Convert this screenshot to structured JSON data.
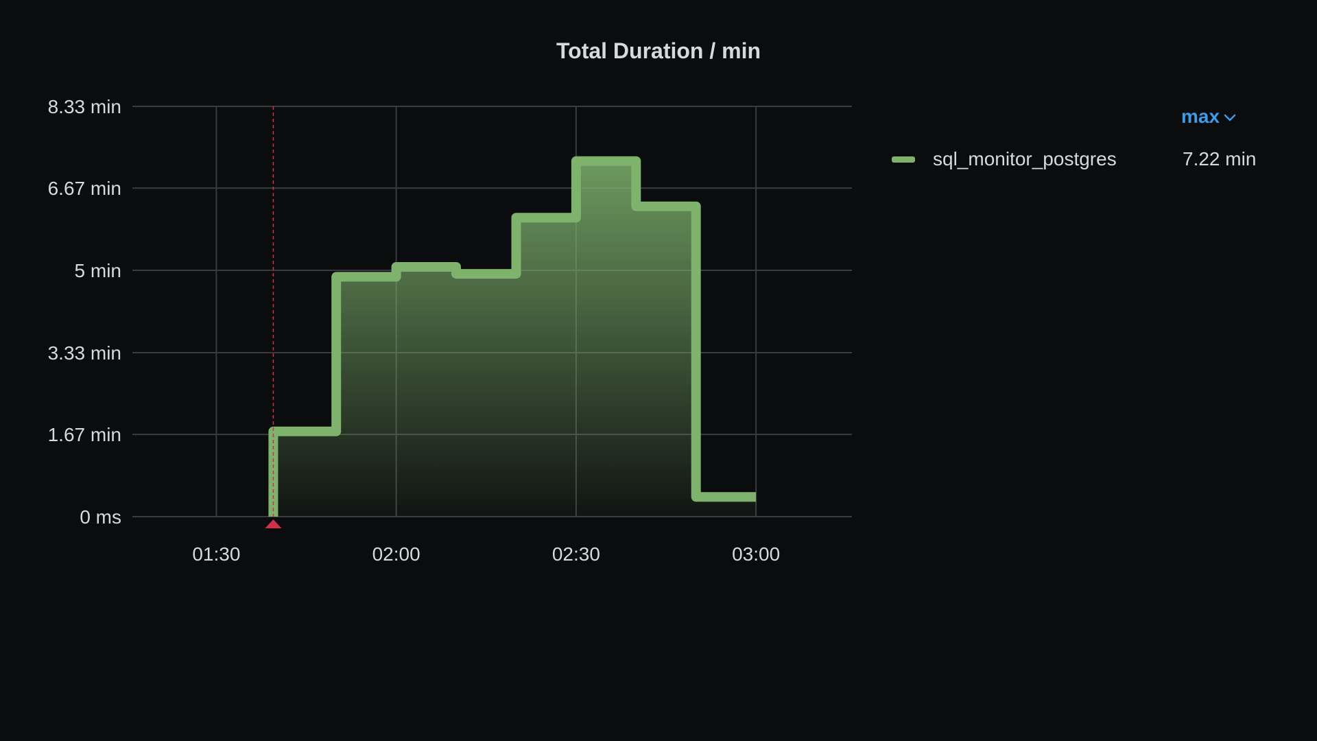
{
  "panel": {
    "title": "Total Duration / min"
  },
  "colors": {
    "background": "#0b0c0e",
    "text": "#d8d9da",
    "grid": "#3a3b3e",
    "series": "#7eb26d",
    "annotation": "#d0314a",
    "accent": "#3d9be9"
  },
  "legend": {
    "sort_label": "max",
    "sort_icon": "chevron-down-icon",
    "items": [
      {
        "name": "sql_monitor_postgres",
        "value": "7.22 min"
      }
    ]
  },
  "chart_data": {
    "type": "area",
    "title": "Total Duration / min",
    "xlabel": "",
    "ylabel": "",
    "x_tick_labels": [
      "01:30",
      "02:00",
      "02:30",
      "03:00"
    ],
    "x_tick_minutes": [
      90,
      120,
      150,
      180
    ],
    "xlim_minutes": [
      76,
      196
    ],
    "y_tick_labels": [
      "0 ms",
      "1.67 min",
      "3.33 min",
      "5 min",
      "6.67 min",
      "8.33 min"
    ],
    "y_tick_values": [
      0,
      1.67,
      3.33,
      5,
      6.67,
      8.33
    ],
    "ylim": [
      0,
      8.33
    ],
    "step": "after",
    "grid": true,
    "legend_placement": "right",
    "series": [
      {
        "name": "sql_monitor_postgres",
        "x_minutes": [
          99.5,
          110,
          120,
          130,
          140,
          150,
          160,
          170,
          180
        ],
        "values": [
          1.73,
          4.87,
          5.07,
          4.93,
          6.07,
          7.22,
          6.3,
          0.4,
          0.4
        ],
        "max": "7.22 min"
      }
    ],
    "annotations": [
      {
        "type": "vertical-line",
        "x_minutes": 99.5,
        "color": "#d0314a"
      }
    ]
  }
}
